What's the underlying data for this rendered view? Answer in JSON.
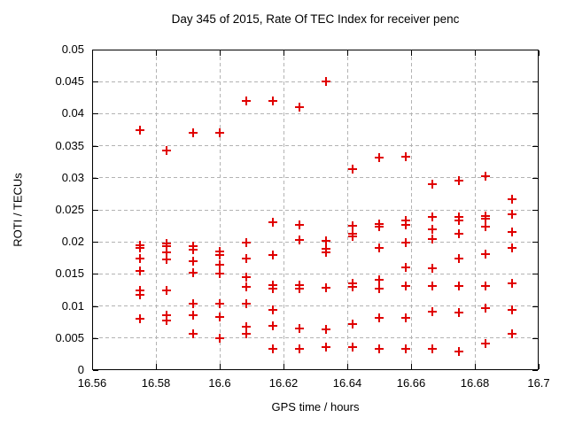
{
  "title": "Day 345 of 2015, Rate Of TEC Index for receiver penc",
  "chart_data": {
    "type": "scatter",
    "title": "Day 345 of 2015, Rate Of TEC Index for receiver penc",
    "xlabel": "GPS time / hours",
    "ylabel": "ROTI / TECUs",
    "xlim": [
      16.56,
      16.7
    ],
    "ylim": [
      0,
      0.05
    ],
    "x_ticks": [
      16.56,
      16.58,
      16.6,
      16.62,
      16.64,
      16.66,
      16.68,
      16.7
    ],
    "x_tick_labels": [
      "16.56",
      "16.58",
      "16.6",
      "16.62",
      "16.64",
      "16.66",
      "16.68",
      "16.7"
    ],
    "y_ticks": [
      0,
      0.005,
      0.01,
      0.015,
      0.02,
      0.025,
      0.03,
      0.035,
      0.04,
      0.045,
      0.05
    ],
    "y_tick_labels": [
      "0",
      "0.005",
      "0.01",
      "0.015",
      "0.02",
      "0.025",
      "0.03",
      "0.035",
      "0.04",
      "0.045",
      "0.05"
    ],
    "grid": true,
    "legend": "none",
    "marker": "plus",
    "marker_color": "#e00000",
    "points": [
      [
        16.575,
        0.0375
      ],
      [
        16.575,
        0.0195
      ],
      [
        16.575,
        0.019
      ],
      [
        16.575,
        0.0174
      ],
      [
        16.575,
        0.0155
      ],
      [
        16.575,
        0.0124
      ],
      [
        16.575,
        0.0117
      ],
      [
        16.575,
        0.008
      ],
      [
        16.5833,
        0.0343
      ],
      [
        16.5833,
        0.0197
      ],
      [
        16.5833,
        0.0193
      ],
      [
        16.5833,
        0.0184
      ],
      [
        16.5833,
        0.0173
      ],
      [
        16.5833,
        0.0124
      ],
      [
        16.5833,
        0.0086
      ],
      [
        16.5833,
        0.0077
      ],
      [
        16.5917,
        0.037
      ],
      [
        16.5917,
        0.0193
      ],
      [
        16.5917,
        0.0188
      ],
      [
        16.5917,
        0.017
      ],
      [
        16.5917,
        0.0152
      ],
      [
        16.5917,
        0.0104
      ],
      [
        16.5917,
        0.0085
      ],
      [
        16.5917,
        0.0056
      ],
      [
        16.6,
        0.037
      ],
      [
        16.6,
        0.0185
      ],
      [
        16.6,
        0.018
      ],
      [
        16.6,
        0.0165
      ],
      [
        16.6,
        0.0151
      ],
      [
        16.6,
        0.0103
      ],
      [
        16.6,
        0.0083
      ],
      [
        16.6,
        0.005
      ],
      [
        16.6083,
        0.042
      ],
      [
        16.6083,
        0.0199
      ],
      [
        16.6083,
        0.0174
      ],
      [
        16.6083,
        0.0145
      ],
      [
        16.6083,
        0.013
      ],
      [
        16.6083,
        0.0103
      ],
      [
        16.6083,
        0.0067
      ],
      [
        16.6083,
        0.0056
      ],
      [
        16.6167,
        0.042
      ],
      [
        16.6167,
        0.023
      ],
      [
        16.6167,
        0.0179
      ],
      [
        16.6167,
        0.0133
      ],
      [
        16.6167,
        0.0127
      ],
      [
        16.6167,
        0.0094
      ],
      [
        16.6167,
        0.0069
      ],
      [
        16.6167,
        0.0033
      ],
      [
        16.625,
        0.041
      ],
      [
        16.625,
        0.0227
      ],
      [
        16.625,
        0.0203
      ],
      [
        16.625,
        0.0132
      ],
      [
        16.625,
        0.0127
      ],
      [
        16.625,
        0.0065
      ],
      [
        16.625,
        0.0033
      ],
      [
        16.6333,
        0.045
      ],
      [
        16.6333,
        0.0202
      ],
      [
        16.6333,
        0.0189
      ],
      [
        16.6333,
        0.0184
      ],
      [
        16.6333,
        0.0128
      ],
      [
        16.6333,
        0.0064
      ],
      [
        16.6333,
        0.0036
      ],
      [
        16.6417,
        0.0313
      ],
      [
        16.6417,
        0.0225
      ],
      [
        16.6417,
        0.0213
      ],
      [
        16.6417,
        0.0209
      ],
      [
        16.6417,
        0.0135
      ],
      [
        16.6417,
        0.013
      ],
      [
        16.6417,
        0.0072
      ],
      [
        16.6417,
        0.0036
      ],
      [
        16.65,
        0.0332
      ],
      [
        16.65,
        0.0228
      ],
      [
        16.65,
        0.0224
      ],
      [
        16.65,
        0.0191
      ],
      [
        16.65,
        0.0141
      ],
      [
        16.65,
        0.0127
      ],
      [
        16.65,
        0.0082
      ],
      [
        16.65,
        0.0033
      ],
      [
        16.6583,
        0.0333
      ],
      [
        16.6583,
        0.0233
      ],
      [
        16.6583,
        0.0227
      ],
      [
        16.6583,
        0.0199
      ],
      [
        16.6583,
        0.016
      ],
      [
        16.6583,
        0.0131
      ],
      [
        16.6583,
        0.0081
      ],
      [
        16.6583,
        0.0033
      ],
      [
        16.6667,
        0.029
      ],
      [
        16.6667,
        0.0239
      ],
      [
        16.6667,
        0.022
      ],
      [
        16.6667,
        0.0204
      ],
      [
        16.6667,
        0.0159
      ],
      [
        16.6667,
        0.0131
      ],
      [
        16.6667,
        0.0091
      ],
      [
        16.6667,
        0.0033
      ],
      [
        16.675,
        0.0295
      ],
      [
        16.675,
        0.0239
      ],
      [
        16.675,
        0.0234
      ],
      [
        16.675,
        0.0213
      ],
      [
        16.675,
        0.0174
      ],
      [
        16.675,
        0.0131
      ],
      [
        16.675,
        0.009
      ],
      [
        16.675,
        0.0029
      ],
      [
        16.6833,
        0.0303
      ],
      [
        16.6833,
        0.0241
      ],
      [
        16.6833,
        0.0236
      ],
      [
        16.6833,
        0.0224
      ],
      [
        16.6833,
        0.0181
      ],
      [
        16.6833,
        0.0131
      ],
      [
        16.6833,
        0.0096
      ],
      [
        16.6833,
        0.0041
      ],
      [
        16.6917,
        0.0267
      ],
      [
        16.6917,
        0.0243
      ],
      [
        16.6917,
        0.0216
      ],
      [
        16.6917,
        0.019
      ],
      [
        16.6917,
        0.0136
      ],
      [
        16.6917,
        0.0094
      ],
      [
        16.6917,
        0.0057
      ]
    ]
  }
}
